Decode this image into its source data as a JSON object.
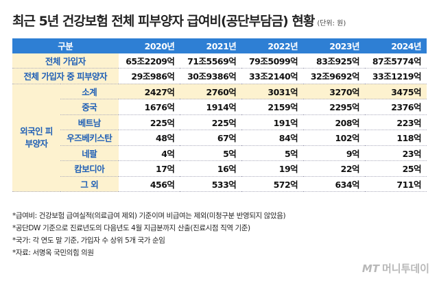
{
  "header": {
    "title": "최근 5년 건강보험 전체 피부양자 급여비(공단부담금) 현황",
    "unit": "(단위: 원)"
  },
  "table": {
    "columns": [
      "구분",
      "2020년",
      "2021년",
      "2022년",
      "2023년",
      "2024년"
    ],
    "rows": [
      {
        "label": "전체 가입자",
        "values": [
          "65조2209억",
          "71조5569억",
          "79조5099억",
          "83조925억",
          "87조5774억"
        ]
      },
      {
        "label": "전체 가입자 중 피부양자",
        "values": [
          "29조986억",
          "30조9386억",
          "33조2140억",
          "32조9692억",
          "33조1219억"
        ]
      }
    ],
    "group": {
      "label": "외국인 피부양자",
      "rows": [
        {
          "label": "소계",
          "values": [
            "2427억",
            "2760억",
            "3031억",
            "3270억",
            "3475억"
          ]
        },
        {
          "label": "중국",
          "values": [
            "1676억",
            "1914억",
            "2159억",
            "2295억",
            "2376억"
          ]
        },
        {
          "label": "베트남",
          "values": [
            "225억",
            "225억",
            "191억",
            "208억",
            "223억"
          ]
        },
        {
          "label": "우즈베키스탄",
          "values": [
            "48억",
            "67억",
            "84억",
            "102억",
            "118억"
          ]
        },
        {
          "label": "네팔",
          "values": [
            "4억",
            "5억",
            "5억",
            "9억",
            "23억"
          ]
        },
        {
          "label": "캄보디아",
          "values": [
            "17억",
            "16억",
            "19억",
            "22억",
            "25억"
          ]
        },
        {
          "label": "그 외",
          "values": [
            "456억",
            "533억",
            "572억",
            "634억",
            "711억"
          ]
        }
      ]
    }
  },
  "footnotes": [
    "*급여비: 건강보험 급여실적(의료급여 제외) 기준이며 비급여는 제외(미청구분 반영되지 않았음)",
    "*공단DW 기준으로 진료년도의 다음년도 4월 지급분까지 산출(진료시점 직역 기준)",
    "*국가: 각 연도 말 기준, 가입자 수 상위 5개 국가 순임",
    "*자료: 서명옥 국민의힘 의원"
  ],
  "brand": {
    "logo": "MT",
    "name": "머니투데이"
  }
}
